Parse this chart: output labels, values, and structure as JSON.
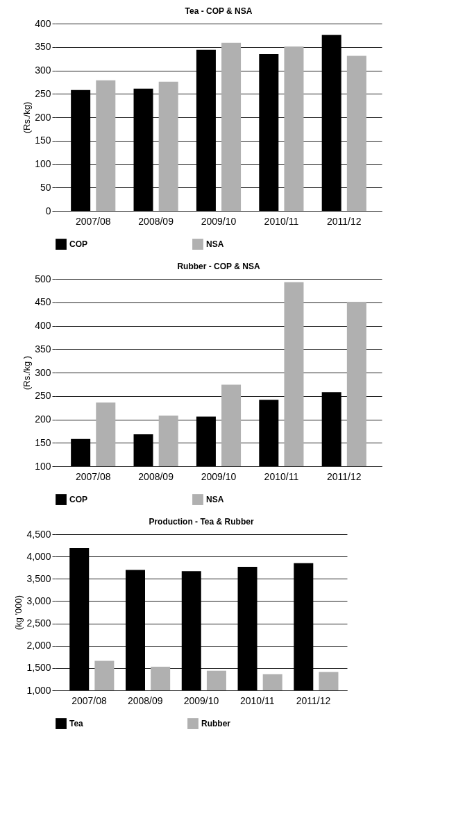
{
  "chart_data": [
    {
      "type": "bar",
      "title": "Tea  - COP & NSA",
      "ylabel": "(Rs./kg)",
      "categories": [
        "2007/08",
        "2008/09",
        "2009/10",
        "2010/11",
        "2011/12"
      ],
      "series": [
        {
          "name": "COP",
          "color": "#000000",
          "values": [
            258,
            261,
            344,
            335,
            376
          ]
        },
        {
          "name": "NSA",
          "color": "#b0b0b0",
          "values": [
            279,
            276,
            359,
            351,
            331
          ]
        }
      ],
      "ylim": [
        0,
        400
      ],
      "yticks": [
        0,
        50,
        100,
        150,
        200,
        250,
        300,
        350,
        400
      ],
      "grid": "y",
      "legend": "bottom"
    },
    {
      "type": "bar",
      "title": "Rubber - COP & NSA",
      "ylabel": "(Rs./kg )",
      "categories": [
        "2007/08",
        "2008/09",
        "2009/10",
        "2010/11",
        "2011/12"
      ],
      "series": [
        {
          "name": "COP",
          "color": "#000000",
          "values": [
            158,
            168,
            206,
            242,
            258
          ]
        },
        {
          "name": "NSA",
          "color": "#b0b0b0",
          "values": [
            236,
            208,
            274,
            493,
            451
          ]
        }
      ],
      "ylim": [
        100,
        500
      ],
      "yticks": [
        100,
        150,
        200,
        250,
        300,
        350,
        400,
        450,
        500
      ],
      "grid": "y",
      "legend": "bottom"
    },
    {
      "type": "bar",
      "title": "Production - Tea & Rubber",
      "ylabel": "(kg '000)",
      "categories": [
        "2007/08",
        "2008/09",
        "2009/10",
        "2010/11",
        "2011/12"
      ],
      "series": [
        {
          "name": "Tea",
          "color": "#000000",
          "values": [
            4190,
            3700,
            3670,
            3770,
            3850
          ]
        },
        {
          "name": "Rubber",
          "color": "#b0b0b0",
          "values": [
            1660,
            1530,
            1440,
            1360,
            1410
          ]
        }
      ],
      "ylim": [
        1000,
        4500
      ],
      "yticks": [
        {
          "value": 1000,
          "label": "1,000"
        },
        {
          "value": 1500,
          "label": "1,500"
        },
        {
          "value": 2000,
          "label": "2,000"
        },
        {
          "value": 2500,
          "label": "2,500"
        },
        {
          "value": 3000,
          "label": "3,000"
        },
        {
          "value": 3500,
          "label": "3,500"
        },
        {
          "value": 4000,
          "label": "4,000"
        },
        {
          "value": 4500,
          "label": "4,500"
        }
      ],
      "grid": "y",
      "legend": "bottom"
    }
  ]
}
